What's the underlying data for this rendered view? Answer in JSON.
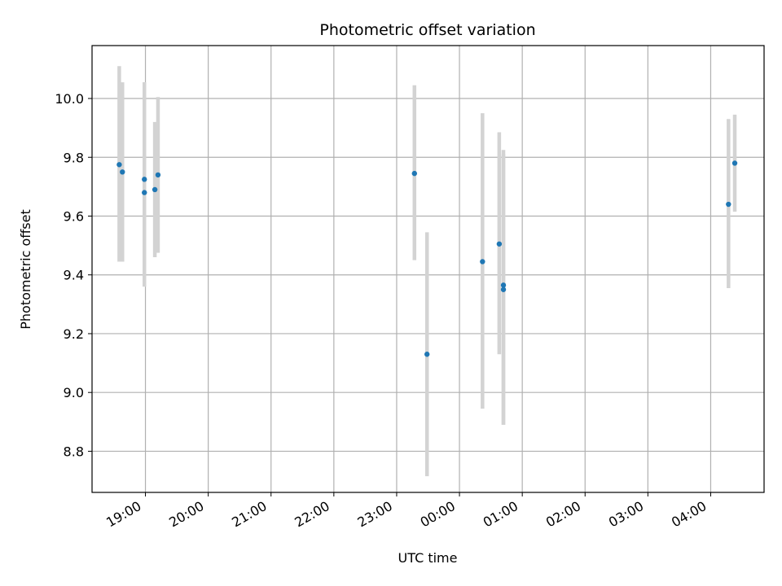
{
  "chart_data": {
    "type": "scatter",
    "title": "Photometric offset variation",
    "xlabel": "UTC time",
    "ylabel": "Photometric offset",
    "x_ticks": [
      "19:00",
      "20:00",
      "21:00",
      "22:00",
      "23:00",
      "00:00",
      "01:00",
      "02:00",
      "03:00",
      "04:00"
    ],
    "x_tick_hours": [
      19,
      20,
      21,
      22,
      23,
      24,
      25,
      26,
      27,
      28
    ],
    "xlim_hours": [
      18.15,
      28.85
    ],
    "y_ticks": [
      "8.8",
      "9.0",
      "9.2",
      "9.4",
      "9.6",
      "9.8",
      "10.0"
    ],
    "y_tick_values": [
      8.8,
      9.0,
      9.2,
      9.4,
      9.6,
      9.8,
      10.0
    ],
    "ylim": [
      8.66,
      10.18
    ],
    "grid": true,
    "marker_color": "#1f77b4",
    "errorbar_color": "#d3d3d3",
    "points": [
      {
        "t": "18:35",
        "y": 9.775,
        "low": 9.445,
        "high": 10.11
      },
      {
        "t": "18:38",
        "y": 9.75,
        "low": 9.445,
        "high": 10.055
      },
      {
        "t": "18:59",
        "y": 9.725,
        "low": 9.36,
        "high": 10.055
      },
      {
        "t": "18:59",
        "y": 9.68,
        "low": 9.36,
        "high": 10.055
      },
      {
        "t": "19:09",
        "y": 9.69,
        "low": 9.46,
        "high": 9.92
      },
      {
        "t": "19:12",
        "y": 9.74,
        "low": 9.475,
        "high": 10.005
      },
      {
        "t": "23:17",
        "y": 9.745,
        "low": 9.45,
        "high": 10.045
      },
      {
        "t": "23:29",
        "y": 9.13,
        "low": 8.715,
        "high": 9.545
      },
      {
        "t": "00:22",
        "y": 9.445,
        "low": 8.945,
        "high": 9.95
      },
      {
        "t": "00:38",
        "y": 9.505,
        "low": 9.13,
        "high": 9.885
      },
      {
        "t": "00:42",
        "y": 9.365,
        "low": 8.89,
        "high": 9.825
      },
      {
        "t": "00:42",
        "y": 9.35,
        "low": 8.89,
        "high": 9.81
      },
      {
        "t": "04:17",
        "y": 9.64,
        "low": 9.355,
        "high": 9.93
      },
      {
        "t": "04:23",
        "y": 9.78,
        "low": 9.615,
        "high": 9.945
      }
    ]
  }
}
